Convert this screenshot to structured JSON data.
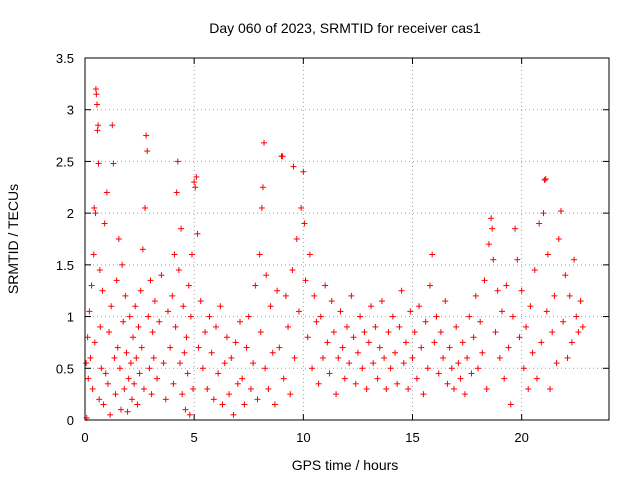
{
  "chart_data": {
    "type": "scatter",
    "title": "Day 060 of 2023, SRMTID for receiver cas1",
    "xlabel": "GPS time / hours",
    "ylabel": "SRMTID / TECUs",
    "xlim": [
      0,
      24
    ],
    "ylim": [
      0,
      3.5
    ],
    "xticks": [
      0,
      5,
      10,
      15,
      20
    ],
    "xtick_labels": [
      "0",
      "5",
      "10",
      "15",
      "20"
    ],
    "yticks": [
      0,
      0.5,
      1,
      1.5,
      2,
      2.5,
      3,
      3.5
    ],
    "ytick_labels": [
      "0",
      "0.5",
      "1",
      "1.5",
      "2",
      "2.5",
      "3",
      "3.5"
    ],
    "grid": true,
    "marker": "+",
    "marker_color": "#ff0000",
    "series": [
      {
        "name": "SRMTID",
        "points": [
          [
            0.05,
            0.55
          ],
          [
            0.08,
            0.02
          ],
          [
            0.12,
            0.8
          ],
          [
            0.15,
            0.4
          ],
          [
            0.2,
            1.05
          ],
          [
            0.25,
            0.6
          ],
          [
            0.3,
            1.3
          ],
          [
            0.35,
            0.3
          ],
          [
            0.4,
            1.6
          ],
          [
            0.42,
            2.05
          ],
          [
            0.45,
            0.75
          ],
          [
            0.48,
            2.0
          ],
          [
            0.5,
            3.2
          ],
          [
            0.52,
            3.15
          ],
          [
            0.55,
            3.05
          ],
          [
            0.57,
            2.8
          ],
          [
            0.6,
            2.85
          ],
          [
            0.62,
            2.48
          ],
          [
            0.65,
            0.2
          ],
          [
            0.68,
            1.45
          ],
          [
            0.7,
            0.9
          ],
          [
            0.75,
            0.5
          ],
          [
            0.8,
            1.25
          ],
          [
            0.85,
            0.15
          ],
          [
            0.9,
            1.9
          ],
          [
            0.95,
            0.45
          ],
          [
            1.0,
            2.2
          ],
          [
            1.05,
            0.35
          ],
          [
            1.1,
            0.85
          ],
          [
            1.15,
            0.05
          ],
          [
            1.2,
            1.1
          ],
          [
            1.25,
            2.85
          ],
          [
            1.3,
            2.48
          ],
          [
            1.35,
            0.6
          ],
          [
            1.4,
            0.25
          ],
          [
            1.45,
            1.35
          ],
          [
            1.5,
            0.7
          ],
          [
            1.55,
            1.75
          ],
          [
            1.6,
            0.5
          ],
          [
            1.65,
            0.1
          ],
          [
            1.7,
            1.5
          ],
          [
            1.75,
            0.95
          ],
          [
            1.8,
            0.3
          ],
          [
            1.85,
            1.2
          ],
          [
            1.9,
            0.65
          ],
          [
            1.95,
            0.08
          ],
          [
            2.0,
            0.4
          ],
          [
            2.05,
            1.0
          ],
          [
            2.1,
            0.55
          ],
          [
            2.15,
            0.2
          ],
          [
            2.2,
            0.8
          ],
          [
            2.25,
            0.35
          ],
          [
            2.3,
            1.1
          ],
          [
            2.35,
            0.6
          ],
          [
            2.4,
            0.15
          ],
          [
            2.45,
            0.9
          ],
          [
            2.5,
            0.45
          ],
          [
            2.55,
            1.25
          ],
          [
            2.6,
            0.7
          ],
          [
            2.65,
            1.65
          ],
          [
            2.7,
            0.3
          ],
          [
            2.75,
            2.05
          ],
          [
            2.8,
            2.75
          ],
          [
            2.85,
            2.6
          ],
          [
            2.9,
            1.0
          ],
          [
            2.95,
            0.5
          ],
          [
            3.0,
            1.35
          ],
          [
            3.05,
            0.25
          ],
          [
            3.1,
            0.85
          ],
          [
            3.15,
            0.6
          ],
          [
            3.2,
            1.15
          ],
          [
            3.3,
            0.4
          ],
          [
            3.4,
            0.95
          ],
          [
            3.5,
            1.4
          ],
          [
            3.6,
            0.55
          ],
          [
            3.7,
            0.2
          ],
          [
            3.8,
            1.05
          ],
          [
            3.9,
            0.7
          ],
          [
            4.0,
            1.2
          ],
          [
            4.05,
            0.35
          ],
          [
            4.1,
            1.6
          ],
          [
            4.15,
            0.9
          ],
          [
            4.2,
            2.2
          ],
          [
            4.25,
            2.5
          ],
          [
            4.3,
            1.45
          ],
          [
            4.35,
            0.55
          ],
          [
            4.4,
            1.85
          ],
          [
            4.45,
            0.25
          ],
          [
            4.5,
            1.1
          ],
          [
            4.55,
            0.65
          ],
          [
            4.6,
            0.1
          ],
          [
            4.65,
            0.8
          ],
          [
            4.7,
            0.45
          ],
          [
            4.75,
            1.3
          ],
          [
            4.8,
            0.05
          ],
          [
            4.85,
            1.0
          ],
          [
            4.9,
            1.6
          ],
          [
            4.95,
            0.3
          ],
          [
            5.0,
            2.3
          ],
          [
            5.05,
            2.25
          ],
          [
            5.1,
            2.35
          ],
          [
            5.15,
            1.8
          ],
          [
            5.2,
            0.7
          ],
          [
            5.3,
            1.15
          ],
          [
            5.4,
            0.5
          ],
          [
            5.5,
            0.85
          ],
          [
            5.6,
            0.3
          ],
          [
            5.7,
            1.0
          ],
          [
            5.8,
            0.65
          ],
          [
            5.9,
            0.2
          ],
          [
            6.0,
            0.9
          ],
          [
            6.1,
            0.45
          ],
          [
            6.2,
            1.1
          ],
          [
            6.3,
            0.15
          ],
          [
            6.4,
            0.55
          ],
          [
            6.5,
            0.8
          ],
          [
            6.6,
            0.25
          ],
          [
            6.7,
            0.6
          ],
          [
            6.8,
            0.05
          ],
          [
            6.9,
            0.75
          ],
          [
            7.0,
            0.35
          ],
          [
            7.1,
            0.95
          ],
          [
            7.2,
            0.4
          ],
          [
            7.3,
            0.15
          ],
          [
            7.4,
            0.7
          ],
          [
            7.5,
            1.0
          ],
          [
            7.6,
            0.3
          ],
          [
            7.7,
            0.55
          ],
          [
            7.8,
            1.3
          ],
          [
            7.9,
            0.2
          ],
          [
            8.0,
            1.6
          ],
          [
            8.05,
            0.85
          ],
          [
            8.1,
            2.05
          ],
          [
            8.15,
            2.25
          ],
          [
            8.2,
            2.68
          ],
          [
            8.25,
            0.5
          ],
          [
            8.3,
            1.4
          ],
          [
            8.4,
            0.3
          ],
          [
            8.5,
            1.1
          ],
          [
            8.6,
            0.65
          ],
          [
            8.7,
            0.15
          ],
          [
            8.8,
            1.25
          ],
          [
            8.9,
            0.7
          ],
          [
            9.0,
            2.55
          ],
          [
            9.05,
            2.55
          ],
          [
            9.1,
            0.4
          ],
          [
            9.2,
            1.2
          ],
          [
            9.3,
            0.9
          ],
          [
            9.4,
            0.25
          ],
          [
            9.5,
            1.45
          ],
          [
            9.55,
            2.45
          ],
          [
            9.6,
            0.6
          ],
          [
            9.7,
            1.75
          ],
          [
            9.8,
            1.05
          ],
          [
            9.9,
            2.05
          ],
          [
            10.0,
            2.4
          ],
          [
            10.05,
            1.9
          ],
          [
            10.1,
            1.35
          ],
          [
            10.2,
            0.8
          ],
          [
            10.3,
            1.6
          ],
          [
            10.4,
            0.5
          ],
          [
            10.5,
            1.2
          ],
          [
            10.6,
            0.95
          ],
          [
            10.7,
            0.35
          ],
          [
            10.8,
            1.0
          ],
          [
            10.9,
            0.6
          ],
          [
            11.0,
            1.3
          ],
          [
            11.1,
            0.75
          ],
          [
            11.2,
            0.45
          ],
          [
            11.3,
            1.15
          ],
          [
            11.4,
            0.85
          ],
          [
            11.5,
            0.25
          ],
          [
            11.6,
            0.6
          ],
          [
            11.7,
            1.05
          ],
          [
            11.8,
            0.7
          ],
          [
            11.9,
            0.4
          ],
          [
            12.0,
            0.9
          ],
          [
            12.1,
            0.55
          ],
          [
            12.2,
            1.2
          ],
          [
            12.3,
            0.8
          ],
          [
            12.4,
            0.35
          ],
          [
            12.5,
            0.65
          ],
          [
            12.6,
            1.0
          ],
          [
            12.7,
            0.5
          ],
          [
            12.8,
            0.85
          ],
          [
            12.9,
            0.3
          ],
          [
            13.0,
            0.75
          ],
          [
            13.1,
            1.1
          ],
          [
            13.2,
            0.55
          ],
          [
            13.3,
            0.9
          ],
          [
            13.4,
            0.4
          ],
          [
            13.5,
            0.7
          ],
          [
            13.6,
            1.15
          ],
          [
            13.7,
            0.6
          ],
          [
            13.8,
            0.3
          ],
          [
            13.9,
            0.85
          ],
          [
            14.0,
            0.5
          ],
          [
            14.1,
            1.0
          ],
          [
            14.2,
            0.65
          ],
          [
            14.3,
            0.35
          ],
          [
            14.4,
            0.9
          ],
          [
            14.5,
            1.25
          ],
          [
            14.6,
            0.55
          ],
          [
            14.7,
            0.75
          ],
          [
            14.8,
            0.3
          ],
          [
            14.9,
            1.05
          ],
          [
            15.0,
            0.6
          ],
          [
            15.1,
            0.85
          ],
          [
            15.2,
            0.4
          ],
          [
            15.3,
            1.1
          ],
          [
            15.4,
            0.7
          ],
          [
            15.5,
            0.25
          ],
          [
            15.6,
            0.95
          ],
          [
            15.7,
            0.5
          ],
          [
            15.8,
            1.3
          ],
          [
            15.9,
            1.6
          ],
          [
            16.0,
            0.75
          ],
          [
            16.1,
            1.0
          ],
          [
            16.2,
            0.45
          ],
          [
            16.3,
            0.85
          ],
          [
            16.4,
            0.6
          ],
          [
            16.5,
            1.15
          ],
          [
            16.6,
            0.35
          ],
          [
            16.7,
            0.7
          ],
          [
            16.8,
            0.5
          ],
          [
            16.9,
            0.3
          ],
          [
            17.0,
            0.9
          ],
          [
            17.1,
            0.55
          ],
          [
            17.2,
            0.4
          ],
          [
            17.3,
            0.75
          ],
          [
            17.4,
            0.25
          ],
          [
            17.5,
            0.6
          ],
          [
            17.6,
            1.0
          ],
          [
            17.7,
            0.45
          ],
          [
            17.8,
            0.8
          ],
          [
            17.9,
            1.2
          ],
          [
            18.0,
            0.5
          ],
          [
            18.1,
            0.95
          ],
          [
            18.2,
            0.65
          ],
          [
            18.3,
            1.35
          ],
          [
            18.4,
            0.3
          ],
          [
            18.5,
            1.7
          ],
          [
            18.6,
            1.95
          ],
          [
            18.65,
            1.85
          ],
          [
            18.7,
            1.55
          ],
          [
            18.8,
            0.85
          ],
          [
            18.9,
            1.25
          ],
          [
            19.0,
            0.6
          ],
          [
            19.1,
            1.05
          ],
          [
            19.2,
            0.4
          ],
          [
            19.3,
            1.3
          ],
          [
            19.4,
            0.7
          ],
          [
            19.5,
            0.15
          ],
          [
            19.6,
            1.0
          ],
          [
            19.7,
            1.85
          ],
          [
            19.8,
            1.55
          ],
          [
            19.9,
            0.8
          ],
          [
            20.0,
            1.25
          ],
          [
            20.1,
            0.5
          ],
          [
            20.2,
            0.9
          ],
          [
            20.3,
            0.3
          ],
          [
            20.4,
            1.1
          ],
          [
            20.5,
            0.65
          ],
          [
            20.6,
            1.45
          ],
          [
            20.7,
            0.4
          ],
          [
            20.8,
            1.9
          ],
          [
            20.9,
            0.75
          ],
          [
            21.0,
            2.0
          ],
          [
            21.05,
            2.32
          ],
          [
            21.1,
            2.33
          ],
          [
            21.15,
            1.05
          ],
          [
            21.2,
            1.6
          ],
          [
            21.3,
            0.3
          ],
          [
            21.4,
            0.85
          ],
          [
            21.5,
            1.2
          ],
          [
            21.6,
            0.55
          ],
          [
            21.7,
            1.75
          ],
          [
            21.8,
            2.02
          ],
          [
            21.9,
            0.95
          ],
          [
            22.0,
            1.4
          ],
          [
            22.1,
            0.6
          ],
          [
            22.2,
            1.2
          ],
          [
            22.3,
            0.75
          ],
          [
            22.4,
            1.55
          ],
          [
            22.5,
            1.0
          ],
          [
            22.6,
            0.85
          ],
          [
            22.7,
            1.15
          ],
          [
            22.8,
            0.9
          ]
        ]
      }
    ]
  }
}
